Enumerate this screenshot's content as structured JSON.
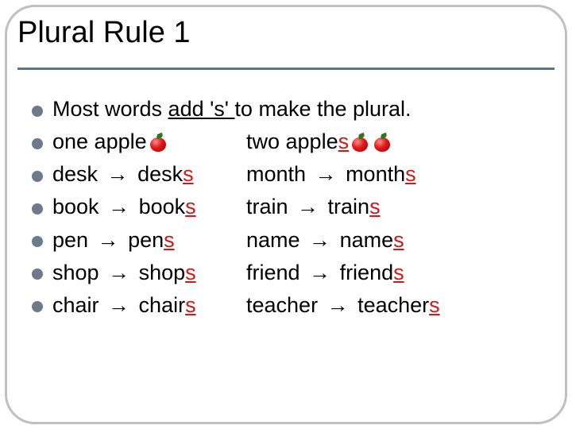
{
  "title": "Plural Rule 1",
  "intro": {
    "prefix": "Most words ",
    "underlined": "add 's' ",
    "suffix": "to make the plural."
  },
  "appleRow": {
    "left": {
      "prefix": "one apple",
      "suffix_red": "",
      "apples": 1
    },
    "right": {
      "prefix": "two apple",
      "suffix_red": "s",
      "apples": 2
    }
  },
  "rows": [
    {
      "l_from": "desk",
      "l_to": "desk",
      "l_s": "s",
      "r_from": "month",
      "r_to": "month",
      "r_s": "s"
    },
    {
      "l_from": "book",
      "l_to": "book",
      "l_s": "s",
      "r_from": "train",
      "r_to": "train",
      "r_s": "s"
    },
    {
      "l_from": "pen",
      "l_to": "pen",
      "l_s": "s",
      "r_from": "name",
      "r_to": "name",
      "r_s": "s"
    },
    {
      "l_from": "shop",
      "l_to": "shop",
      "l_s": "s",
      "r_from": "friend",
      "r_to": "friend",
      "r_s": "s"
    },
    {
      "l_from": "chair",
      "l_to": "chair",
      "l_s": "s",
      "r_from": "teacher",
      "r_to": "teacher",
      "r_s": "s"
    }
  ],
  "arrow": "→",
  "colors": {
    "bullet": "#6c7a8a",
    "rule_line": "#597490",
    "border": "#c0c0c0",
    "text": "#000000",
    "highlight": "#d01818"
  },
  "font_sizes": {
    "title": 38,
    "body": 27
  }
}
